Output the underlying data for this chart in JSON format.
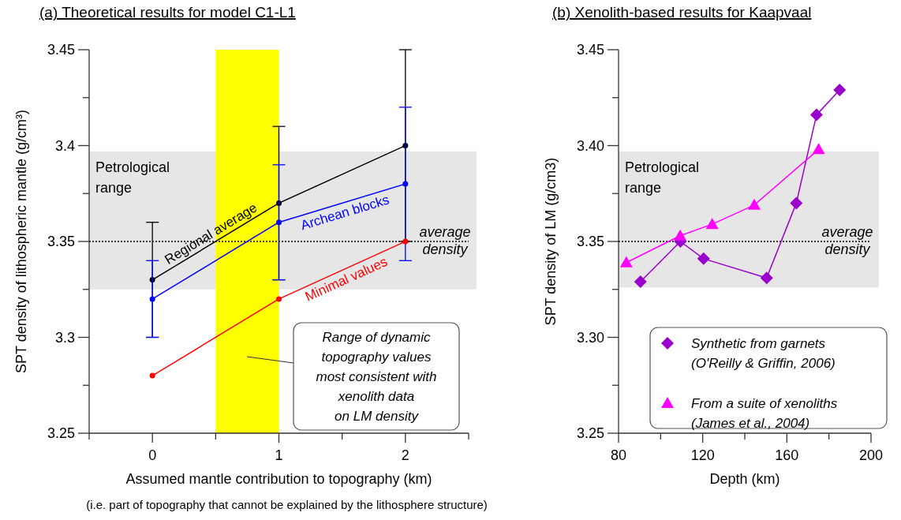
{
  "chart_data": [
    {
      "type": "line",
      "title": "(a) Theoretical results for model C1-L1",
      "xlabel": "Assumed mantle contribution to topography (km)",
      "ylabel": "SPT density of lithospheric mantle (g/cm³)",
      "xlim": [
        -0.5,
        2.5
      ],
      "xticks": [
        {
          "value": -0.5,
          "label": null
        },
        0,
        {
          "value": 0.5,
          "label": null
        },
        1,
        {
          "value": 1.5,
          "label": null
        },
        2,
        {
          "value": 2.5,
          "label": null
        }
      ],
      "ylim": [
        3.25,
        3.45
      ],
      "yticks": [
        3.25,
        {
          "value": 3.275,
          "label": null
        },
        3.3,
        {
          "value": 3.325,
          "label": null
        },
        3.35,
        {
          "value": 3.375,
          "label": null
        },
        3.4,
        {
          "value": 3.425,
          "label": null
        },
        3.45
      ],
      "x": [
        0,
        1,
        2
      ],
      "marker": "circle",
      "legend": false,
      "series": [
        {
          "name": "Regional average",
          "color": "#000000",
          "values": [
            3.33,
            3.37,
            3.4
          ],
          "errors": [
            [
              3.3,
              3.36
            ],
            [
              3.33,
              3.41
            ],
            [
              3.35,
              3.45
            ]
          ]
        },
        {
          "name": "Archean blocks",
          "color": "#0000ff",
          "values": [
            3.32,
            3.36,
            3.38
          ],
          "errors": [
            [
              3.3,
              3.34
            ],
            [
              3.33,
              3.39
            ],
            [
              3.34,
              3.42
            ]
          ]
        },
        {
          "name": "Minimal values",
          "color": "#ff0000",
          "values": [
            3.28,
            3.32,
            3.35
          ]
        }
      ],
      "bands": [
        {
          "axis": "y",
          "from": 3.325,
          "to": 3.397,
          "label": "Petrological\nrange",
          "color": "#e6e6e6"
        },
        {
          "axis": "x",
          "from": 0.5,
          "to": 1,
          "color": "#ffff00"
        }
      ],
      "ref_lines": [
        {
          "axis": "y",
          "value": 3.35,
          "label": "average\ndensity",
          "line_style": "dotted",
          "color": "#000000"
        }
      ],
      "annotations": [
        "Range of dynamic\ntopography values\nmost consistent with\nxenolith data\non LM density",
        "(i.e. part of topography that cannot be explained by the lithosphere structure)"
      ]
    },
    {
      "type": "line",
      "title": "(b) Xenolith-based results for Kaapvaal",
      "xlabel": "Depth (km)",
      "ylabel": "SPT density of LM (g/cm3)",
      "xlim": [
        80,
        200
      ],
      "xticks": [
        80,
        {
          "value": 100,
          "label": null
        },
        120,
        {
          "value": 140,
          "label": null
        },
        160,
        {
          "value": 180,
          "label": null
        },
        200
      ],
      "ylim": [
        3.25,
        3.45
      ],
      "yticks": [
        {
          "value": 3.25,
          "label": "3.25"
        },
        {
          "value": 3.275,
          "label": null
        },
        {
          "value": 3.3,
          "label": "3.30"
        },
        {
          "value": 3.325,
          "label": null
        },
        {
          "value": 3.35,
          "label": "3.35"
        },
        {
          "value": 3.375,
          "label": null
        },
        {
          "value": 3.4,
          "label": "3.40"
        },
        {
          "value": 3.425,
          "label": null
        },
        {
          "value": 3.45,
          "label": "3.45"
        }
      ],
      "legend": "bottom right",
      "series": [
        {
          "name": "Synthetic from garnets\n(O'Reilly & Griffin, 2006)",
          "color": "#9900cc",
          "marker": "diamond",
          "x": [
            90.4,
            109.4,
            120.4,
            150.4,
            164.5,
            174.1,
            185.1
          ],
          "values": [
            3.329,
            3.35,
            3.341,
            3.331,
            3.37,
            3.416,
            3.429
          ]
        },
        {
          "name": "From a suite of xenoliths\n(James et al., 2004)",
          "color": "#ff00ff",
          "marker": "triangle",
          "x": [
            83.7,
            109.3,
            124.5,
            144.5,
            175.1
          ],
          "values": [
            3.339,
            3.353,
            3.359,
            3.369,
            3.398
          ]
        }
      ],
      "bands": [
        {
          "axis": "y",
          "from": 3.326,
          "to": 3.397,
          "label": "Petrological\nrange",
          "color": "#e6e6e6"
        }
      ],
      "ref_lines": [
        {
          "axis": "y",
          "value": 3.35,
          "label": "average\ndensity",
          "line_style": "dotted",
          "color": "#000000"
        }
      ]
    }
  ]
}
